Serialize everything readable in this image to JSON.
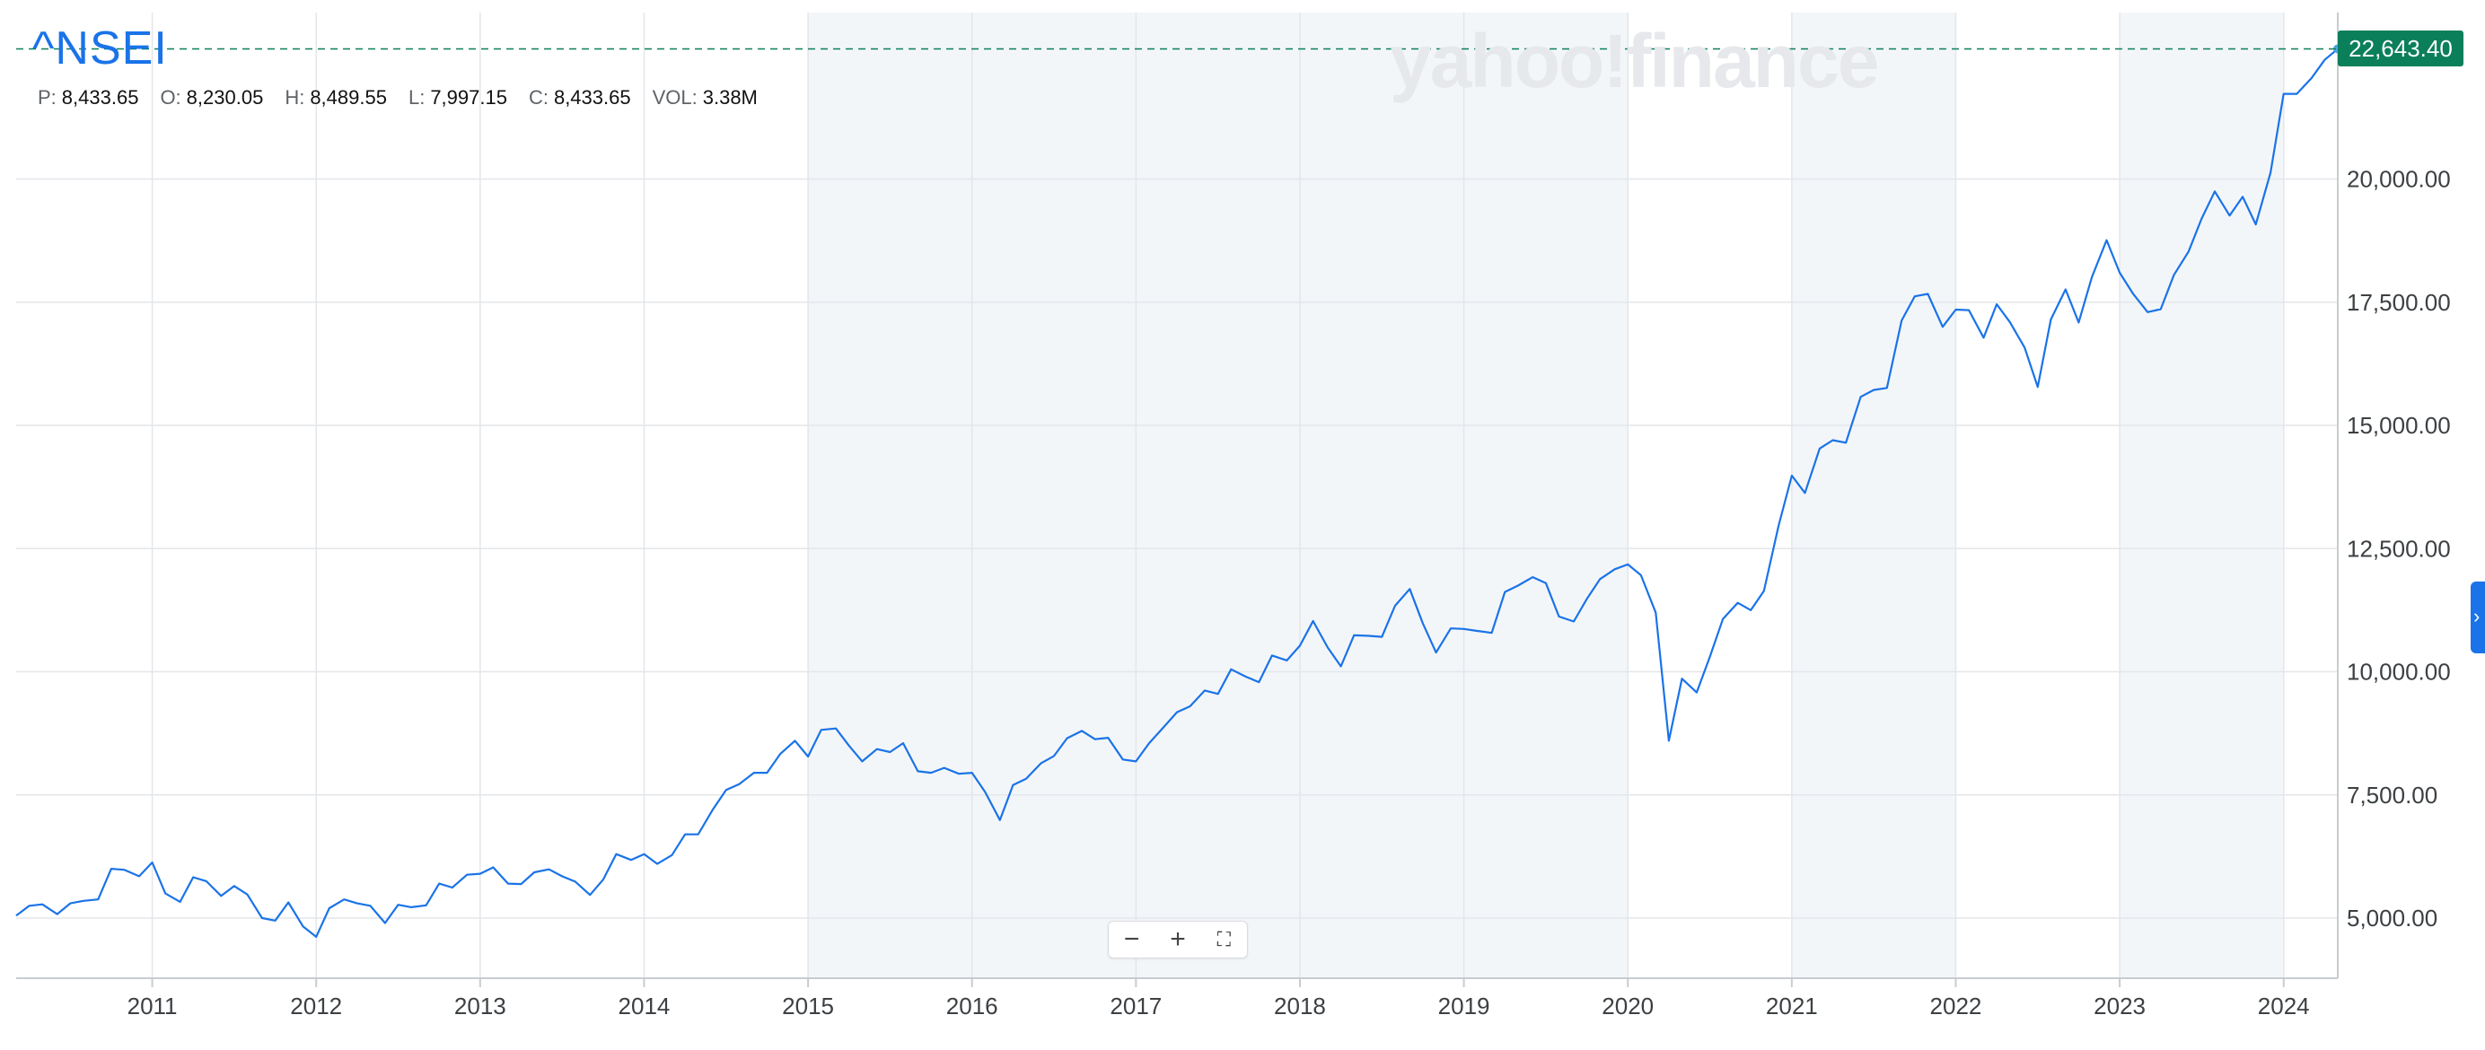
{
  "header": {
    "symbol": "^NSEI",
    "watermark": "yahoo!finance",
    "ohlc": [
      {
        "key": "P:",
        "value": "8,433.65"
      },
      {
        "key": "O:",
        "value": "8,230.05"
      },
      {
        "key": "H:",
        "value": "8,489.55"
      },
      {
        "key": "L:",
        "value": "7,997.15"
      },
      {
        "key": "C:",
        "value": "8,433.65"
      },
      {
        "key": "VOL:",
        "value": "3.38M"
      }
    ]
  },
  "last_price_label": "22,643.40",
  "controls": {
    "zoom_out": "−",
    "zoom_in": "+",
    "fullscreen": "⛶",
    "side_tab": "›"
  },
  "colors": {
    "line": "#1a73e8",
    "band": "#f3f6f9",
    "grid": "#e3e6ea",
    "price_tag": "#0a7f5a",
    "last_price_line": "#0a7f5a"
  },
  "chart_data": {
    "type": "line",
    "title": "^NSEI",
    "xlabel": "",
    "ylabel": "",
    "xlim": [
      2010.17,
      2024.33
    ],
    "ylim": [
      3780,
      23380
    ],
    "y_ticks": [
      5000,
      7500,
      10000,
      12500,
      15000,
      17500,
      20000
    ],
    "y_tick_labels": [
      "5,000.00",
      "7,500.00",
      "10,000.00",
      "12,500.00",
      "15,000.00",
      "17,500.00",
      "20,000.00"
    ],
    "x_ticks": [
      2011,
      2012,
      2013,
      2014,
      2015,
      2016,
      2017,
      2018,
      2019,
      2020,
      2021,
      2022,
      2023,
      2024
    ],
    "x_tick_labels": [
      "2011",
      "2012",
      "2013",
      "2014",
      "2015",
      "2016",
      "2017",
      "2018",
      "2019",
      "2020",
      "2021",
      "2022",
      "2023",
      "2024"
    ],
    "shaded_year_bands": [
      [
        2015,
        2020
      ],
      [
        2021,
        2022
      ],
      [
        2023,
        2024
      ]
    ],
    "grid": true,
    "last_value": 22643.4,
    "series": [
      {
        "x": [
          2010.17,
          2010.25,
          2010.33,
          2010.42,
          2010.5,
          2010.58,
          2010.67,
          2010.75,
          2010.83,
          2010.92,
          2011.0,
          2011.08,
          2011.17,
          2011.25,
          2011.33,
          2011.42,
          2011.5,
          2011.58,
          2011.67,
          2011.75,
          2011.83,
          2011.92,
          2012.0,
          2012.08,
          2012.17,
          2012.25,
          2012.33,
          2012.42,
          2012.5,
          2012.58,
          2012.67,
          2012.75,
          2012.83,
          2012.92,
          2013.0,
          2013.08,
          2013.17,
          2013.25,
          2013.33,
          2013.42,
          2013.5,
          2013.58,
          2013.67,
          2013.75,
          2013.83,
          2013.92,
          2014.0,
          2014.08,
          2014.17,
          2014.25,
          2014.33,
          2014.42,
          2014.5,
          2014.58,
          2014.67,
          2014.75,
          2014.83,
          2014.92,
          2015.0,
          2015.08,
          2015.17,
          2015.25,
          2015.33,
          2015.42,
          2015.5,
          2015.58,
          2015.67,
          2015.75,
          2015.83,
          2015.92,
          2016.0,
          2016.08,
          2016.17,
          2016.25,
          2016.33,
          2016.42,
          2016.5,
          2016.58,
          2016.67,
          2016.75,
          2016.83,
          2016.92,
          2017.0,
          2017.08,
          2017.17,
          2017.25,
          2017.33,
          2017.42,
          2017.5,
          2017.58,
          2017.67,
          2017.75,
          2017.83,
          2017.92,
          2018.0,
          2018.08,
          2018.17,
          2018.25,
          2018.33,
          2018.42,
          2018.5,
          2018.58,
          2018.67,
          2018.75,
          2018.83,
          2018.92,
          2019.0,
          2019.08,
          2019.17,
          2019.25,
          2019.33,
          2019.42,
          2019.5,
          2019.58,
          2019.67,
          2019.75,
          2019.83,
          2019.92,
          2020.0,
          2020.08,
          2020.17,
          2020.25,
          2020.33,
          2020.42,
          2020.5,
          2020.58,
          2020.67,
          2020.75,
          2020.83,
          2020.92,
          2021.0,
          2021.08,
          2021.17,
          2021.25,
          2021.33,
          2021.42,
          2021.5,
          2021.58,
          2021.67,
          2021.75,
          2021.83,
          2021.92,
          2022.0,
          2022.08,
          2022.17,
          2022.25,
          2022.33,
          2022.42,
          2022.5,
          2022.58,
          2022.67,
          2022.75,
          2022.83,
          2022.92,
          2023.0,
          2023.08,
          2023.17,
          2023.25,
          2023.33,
          2023.42,
          2023.5,
          2023.58,
          2023.67,
          2023.75,
          2023.83,
          2023.92,
          2024.0,
          2024.08,
          2024.17,
          2024.25,
          2024.33
        ],
        "y": [
          5050,
          5250,
          5280,
          5080,
          5300,
          5350,
          5380,
          6000,
          5980,
          5850,
          6130,
          5500,
          5330,
          5830,
          5750,
          5450,
          5650,
          5480,
          5000,
          4950,
          5320,
          4830,
          4620,
          5200,
          5380,
          5300,
          5250,
          4900,
          5270,
          5220,
          5260,
          5700,
          5620,
          5880,
          5900,
          6030,
          5700,
          5690,
          5930,
          5990,
          5850,
          5740,
          5470,
          5780,
          6300,
          6180,
          6300,
          6100,
          6280,
          6700,
          6700,
          7210,
          7600,
          7720,
          7950,
          7950,
          8330,
          8600,
          8280,
          8820,
          8850,
          8500,
          8180,
          8430,
          8370,
          8550,
          7980,
          7950,
          8050,
          7930,
          7950,
          7560,
          6990,
          7700,
          7830,
          8140,
          8290,
          8650,
          8800,
          8630,
          8660,
          8220,
          8180,
          8550,
          8880,
          9180,
          9300,
          9620,
          9550,
          10050,
          9900,
          9790,
          10330,
          10230,
          10530,
          11030,
          10490,
          10110,
          10740,
          10730,
          10710,
          11340,
          11680,
          10980,
          10390,
          10880,
          10870,
          10830,
          10790,
          11620,
          11750,
          11920,
          11800,
          11120,
          11020,
          11480,
          11880,
          12080,
          12180,
          11960,
          11200,
          8600,
          9860,
          9580,
          10300,
          11070,
          11400,
          11250,
          11640,
          12970,
          13980,
          13630,
          14530,
          14700,
          14650,
          15580,
          15720,
          15760,
          17130,
          17620,
          17670,
          17000,
          17350,
          17340,
          16780,
          17460,
          17100,
          16580,
          15780,
          17150,
          17760,
          17090,
          18010,
          18760,
          18100,
          17680,
          17300,
          17360,
          18050,
          18530,
          19200,
          19750,
          19260,
          19640,
          19080,
          20130,
          21730,
          21730,
          22050,
          22420,
          22643
        ]
      }
    ]
  }
}
